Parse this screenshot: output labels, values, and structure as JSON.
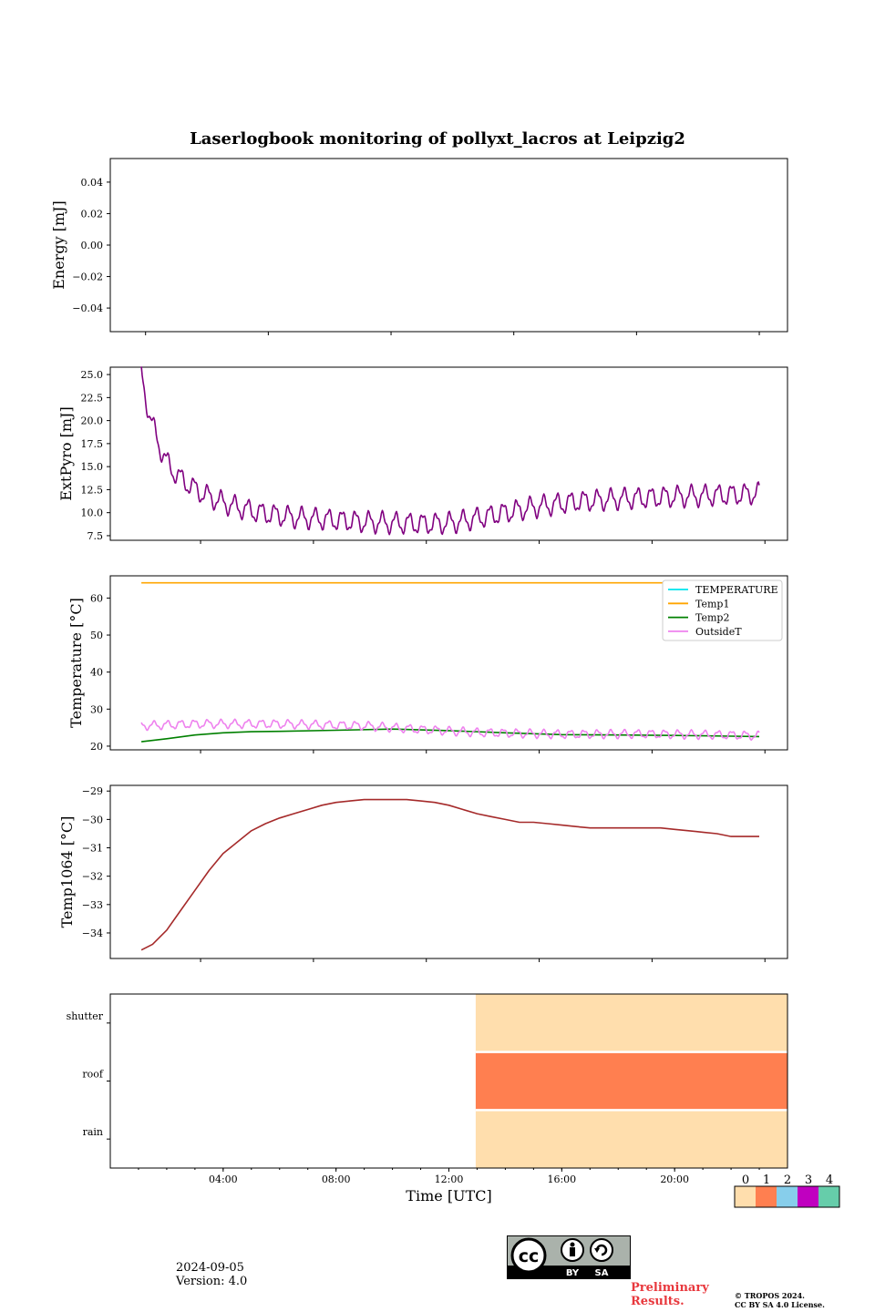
{
  "title": "Laserlogbook monitoring of pollyxt_lacros at Leipzig2",
  "colors": {
    "extpyro": "#800080",
    "TEMPERATURE": "#00e5ee",
    "Temp1": "#ffa500",
    "Temp2": "#008000",
    "OutsideT": "#ee82ee",
    "temp1064": "#a52a2a",
    "status": [
      "#ffdead",
      "#ff7f50",
      "#87ceeb",
      "#c000c0",
      "#66cdaa"
    ]
  },
  "footer": {
    "date": "2024-09-05",
    "version": "Version: 4.0",
    "preliminary_1": "Preliminary",
    "preliminary_2": "Results.",
    "copyright_1": "© TROPOS 2024.",
    "copyright_2": "CC BY SA 4.0 License.",
    "license_badge": {
      "cc": "cc",
      "by": "BY",
      "sa": "SA"
    }
  },
  "chart_data": [
    {
      "type": "line",
      "name": "energy",
      "xlim": [
        0,
        24
      ],
      "ylim": [
        -0.055,
        0.055
      ],
      "yticks": [
        0.04,
        0.02,
        0.0,
        -0.02,
        -0.04
      ],
      "ytick_labels": [
        "0.04",
        "0.02",
        "0.00",
        "−0.02",
        "−0.04"
      ],
      "xticks": [
        1.25,
        5.6,
        9.95,
        14.3,
        18.65,
        23.0
      ],
      "ylabel": "Energy [mJ]",
      "series": []
    },
    {
      "type": "line",
      "name": "extpyro",
      "xlim": [
        0,
        24
      ],
      "ylim": [
        7.0,
        25.8
      ],
      "yticks": [
        25.0,
        22.5,
        20.0,
        17.5,
        15.0,
        12.5,
        10.0,
        7.5
      ],
      "ytick_labels": [
        "25.0",
        "22.5",
        "20.0",
        "17.5",
        "15.0",
        "12.5",
        "10.0",
        "7.5"
      ],
      "xticks": [
        3.2,
        7.2,
        11.2,
        15.2,
        19.2,
        23.2
      ],
      "ylabel": "ExtPyro [mJ]",
      "series": [
        {
          "x": [
            1.1,
            1.25,
            1.4,
            1.6,
            1.8,
            2.0,
            2.2,
            2.5,
            2.8,
            3.2,
            3.6,
            4.0,
            4.5,
            5.0,
            5.5,
            6.0,
            6.5,
            7.0,
            7.5,
            8.0,
            8.5,
            9.0,
            9.5,
            10.0,
            10.5,
            11.0,
            11.5,
            12.0,
            12.5,
            13.0,
            13.5,
            14.0,
            14.5,
            15.0,
            15.5,
            16.0,
            16.5,
            17.0,
            17.5,
            18.0,
            18.5,
            19.0,
            19.5,
            20.0,
            20.5,
            21.0,
            21.5,
            22.0,
            22.5,
            23.0
          ],
          "y": [
            25.0,
            22.6,
            20.5,
            18.5,
            16.8,
            15.5,
            14.6,
            13.7,
            13.0,
            12.2,
            11.6,
            11.1,
            10.6,
            10.2,
            9.9,
            9.7,
            9.5,
            9.4,
            9.3,
            9.2,
            9.1,
            9.0,
            8.95,
            8.9,
            8.85,
            8.8,
            8.8,
            8.9,
            9.1,
            9.4,
            9.7,
            10.0,
            10.3,
            10.6,
            10.8,
            11.0,
            11.2,
            11.3,
            11.4,
            11.5,
            11.55,
            11.6,
            11.7,
            11.75,
            11.8,
            11.85,
            11.9,
            11.95,
            12.0,
            12.1
          ],
          "oscillation_amplitude": 1.0
        }
      ]
    },
    {
      "type": "line",
      "name": "temperature",
      "xlim": [
        0,
        24
      ],
      "ylim": [
        19.0,
        66.0
      ],
      "yticks": [
        60,
        50,
        40,
        30,
        20
      ],
      "ytick_labels": [
        "60",
        "50",
        "40",
        "30",
        "20"
      ],
      "xticks": [
        3.2,
        7.2,
        11.2,
        15.2,
        19.2,
        23.2
      ],
      "ylabel": "Temperature [°C]",
      "legend": {
        "placement": "top-right",
        "entries": [
          "TEMPERATURE",
          "Temp1",
          "Temp2",
          "OutsideT"
        ]
      },
      "series": [
        {
          "name": "TEMPERATURE",
          "x": [],
          "y": []
        },
        {
          "name": "Temp1",
          "x": [
            1.1,
            23.0
          ],
          "y": [
            64.1,
            64.1
          ]
        },
        {
          "name": "Temp2",
          "x": [
            1.1,
            2.0,
            3.0,
            4.0,
            5.0,
            6.0,
            8.0,
            10.0,
            12.0,
            14.0,
            16.0,
            18.0,
            20.0,
            22.0,
            23.0
          ],
          "y": [
            21.2,
            22.0,
            23.0,
            23.6,
            23.9,
            24.0,
            24.3,
            24.6,
            24.2,
            23.6,
            23.1,
            23.0,
            22.9,
            22.7,
            22.6
          ]
        },
        {
          "name": "OutsideT",
          "x": [
            1.1,
            3.0,
            6.0,
            9.0,
            11.0,
            13.0,
            16.0,
            19.0,
            22.0,
            23.0
          ],
          "y": [
            25.5,
            26.0,
            26.0,
            25.5,
            24.5,
            23.7,
            23.2,
            23.3,
            23.0,
            22.8
          ],
          "oscillation_amplitude": 1.0
        }
      ]
    },
    {
      "type": "line",
      "name": "temp1064",
      "xlim": [
        0,
        24
      ],
      "ylim": [
        -34.9,
        -28.8
      ],
      "yticks": [
        -29,
        -30,
        -31,
        -32,
        -33,
        -34
      ],
      "ytick_labels": [
        "−29",
        "−30",
        "−31",
        "−32",
        "−33",
        "−34"
      ],
      "xticks": [
        3.2,
        7.2,
        11.2,
        15.2,
        19.2,
        23.2
      ],
      "ylabel": "Temp1064 [°C]",
      "series": [
        {
          "x": [
            1.1,
            1.5,
            2.0,
            2.5,
            3.0,
            3.5,
            4.0,
            4.5,
            5.0,
            5.5,
            6.0,
            6.5,
            7.0,
            7.5,
            8.0,
            8.5,
            9.0,
            9.5,
            10.0,
            10.5,
            11.0,
            11.5,
            12.0,
            12.5,
            13.0,
            13.5,
            14.0,
            14.5,
            15.0,
            15.5,
            16.0,
            16.5,
            17.0,
            17.5,
            18.0,
            18.5,
            19.0,
            19.5,
            20.0,
            20.5,
            21.0,
            21.5,
            22.0,
            22.5,
            23.0
          ],
          "y": [
            -34.6,
            -34.4,
            -33.9,
            -33.2,
            -32.5,
            -31.8,
            -31.2,
            -30.8,
            -30.4,
            -30.15,
            -29.95,
            -29.8,
            -29.65,
            -29.5,
            -29.4,
            -29.35,
            -29.3,
            -29.3,
            -29.3,
            -29.3,
            -29.35,
            -29.4,
            -29.5,
            -29.65,
            -29.8,
            -29.9,
            -30.0,
            -30.1,
            -30.1,
            -30.15,
            -30.2,
            -30.25,
            -30.3,
            -30.3,
            -30.3,
            -30.3,
            -30.3,
            -30.3,
            -30.35,
            -30.4,
            -30.45,
            -30.5,
            -30.6,
            -30.6,
            -30.6
          ]
        }
      ]
    },
    {
      "type": "heatmap",
      "name": "status",
      "xlim": [
        0,
        24
      ],
      "xticks": [
        4,
        8,
        12,
        16,
        20
      ],
      "xtick_labels": [
        "04:00",
        "08:00",
        "12:00",
        "16:00",
        "20:00"
      ],
      "xlabel": "Time [UTC]",
      "rows": [
        "shutter",
        "roof",
        "rain"
      ],
      "segments": [
        {
          "row": "shutter",
          "x0": 12.95,
          "x1": 24,
          "value": 0
        },
        {
          "row": "roof",
          "x0": 12.95,
          "x1": 24,
          "value": 1
        },
        {
          "row": "rain",
          "x0": 12.95,
          "x1": 24,
          "value": 0
        }
      ],
      "colorbar": {
        "ticks": [
          "0",
          "1",
          "2",
          "3",
          "4"
        ]
      }
    }
  ]
}
